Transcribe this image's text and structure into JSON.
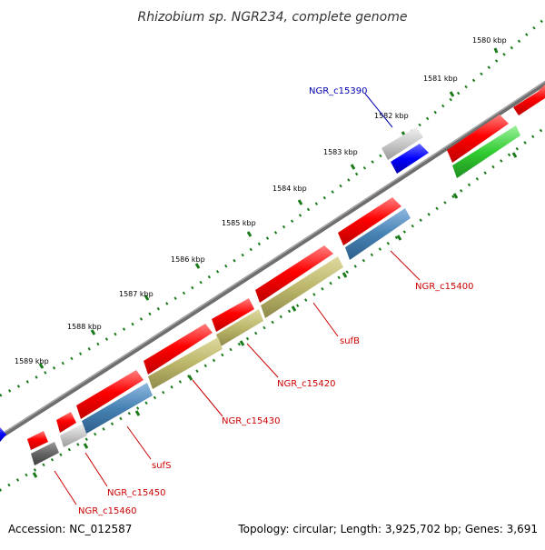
{
  "title": "Rhizobium sp. NGR234, complete genome",
  "footer": {
    "accession": "Accession: NC_012587",
    "summary": "Topology: circular; Length: 3,925,702 bp; Genes: 3,691"
  },
  "colors": {
    "backbone": "#808080",
    "tick": "#1a7a1a",
    "cds_forward": "#ff0000",
    "label_red": "#cc0000",
    "label_blue": "#0000aa",
    "rna_blue": "#4682b4",
    "gene_olive": "#bdb76b",
    "gene_gray": "#c8c8c8",
    "gene_darkgray": "#646464",
    "gene_green": "#32cd32",
    "gene_blue": "#0000ff"
  },
  "axis": {
    "unit": "kbp",
    "ticks": [
      {
        "value": 1580,
        "label": "1580 kbp"
      },
      {
        "value": 1581,
        "label": "1581 kbp"
      },
      {
        "value": 1582,
        "label": "1582 kbp"
      },
      {
        "value": 1583,
        "label": "1583 kbp"
      },
      {
        "value": 1584,
        "label": "1584 kbp"
      },
      {
        "value": 1585,
        "label": "1585 kbp"
      },
      {
        "value": 1586,
        "label": "1586 kbp"
      },
      {
        "value": 1587,
        "label": "1587 kbp"
      },
      {
        "value": 1588,
        "label": "1588 kbp"
      },
      {
        "value": 1589,
        "label": "1589 kbp"
      }
    ]
  },
  "genes": [
    {
      "label": "NGR_c15390",
      "color": "blue"
    },
    {
      "label": "NGR_c15400",
      "color": "red"
    },
    {
      "label": "sufB",
      "color": "red"
    },
    {
      "label": "NGR_c15420",
      "color": "red"
    },
    {
      "label": "NGR_c15430",
      "color": "red"
    },
    {
      "label": "sufS",
      "color": "red"
    },
    {
      "label": "NGR_c15450",
      "color": "red"
    },
    {
      "label": "NGR_c15460",
      "color": "red"
    }
  ]
}
